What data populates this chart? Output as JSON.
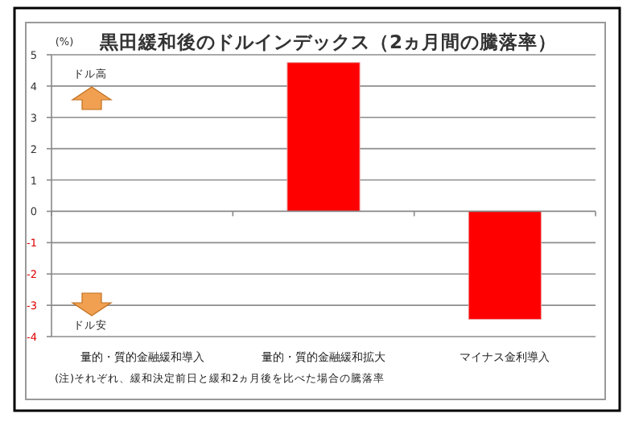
{
  "chart_data": {
    "type": "bar",
    "title": "黒田緩和後のドルインデックス（2ヵ月間の騰落率）",
    "ylabel": "(%)",
    "categories": [
      "量的・質的金融緩和導入",
      "量的・質的金融緩和拡大",
      "マイナス金利導入"
    ],
    "values": [
      0,
      4.75,
      -3.45
    ],
    "color": "#ff0000",
    "ylim": [
      -4,
      5
    ],
    "yticks": [
      -4,
      -3,
      -2,
      -1,
      0,
      1,
      2,
      3,
      4,
      5
    ],
    "grid": "y",
    "annotations": [
      "ドル高",
      "ドル安",
      "(注)それぞれ、緩和決定前日と緩和2ヵ月後を比べた場合の騰落率"
    ]
  }
}
